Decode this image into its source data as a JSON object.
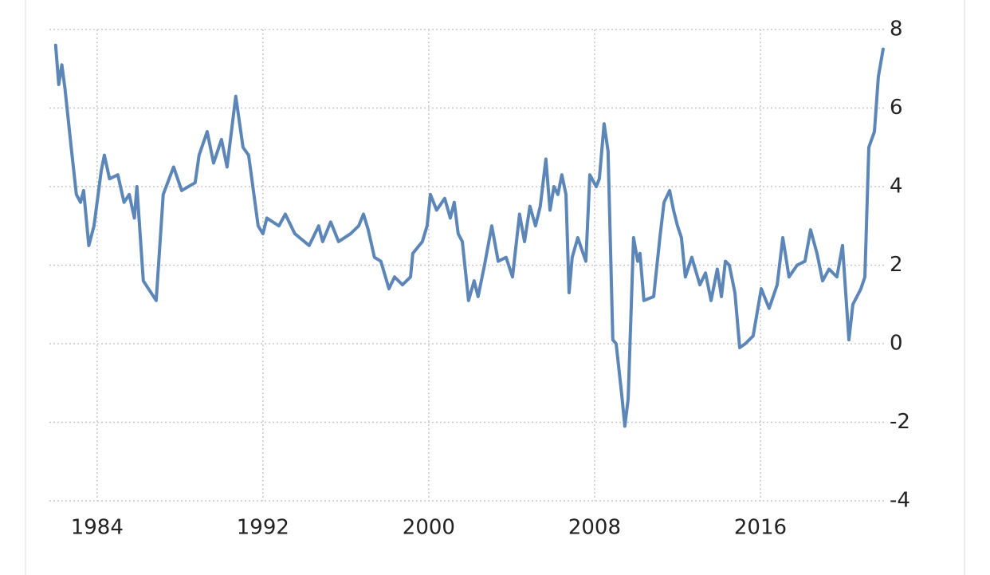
{
  "chart_data": {
    "type": "line",
    "color": "#5b86b7",
    "grid": true,
    "xlim": [
      1981.7,
      2022.0
    ],
    "xticks": [
      1984,
      1992,
      2000,
      2008,
      2016
    ],
    "ylim": [
      -4,
      8
    ],
    "yticks": [
      -4,
      -2,
      0,
      2,
      4,
      6,
      8
    ],
    "x": [
      1982.0,
      1982.15,
      1982.3,
      1982.45,
      1982.75,
      1983.0,
      1983.2,
      1983.35,
      1983.6,
      1983.85,
      1984.2,
      1984.35,
      1984.6,
      1985.0,
      1985.3,
      1985.55,
      1985.8,
      1985.92,
      1986.23,
      1986.85,
      1987.19,
      1987.69,
      1988.08,
      1988.73,
      1988.92,
      1989.31,
      1989.62,
      1990.0,
      1990.27,
      1990.69,
      1991.04,
      1991.31,
      1991.77,
      1992.0,
      1992.19,
      1992.77,
      1993.08,
      1993.54,
      1994.23,
      1994.69,
      1994.88,
      1995.27,
      1995.65,
      1996.23,
      1996.62,
      1996.85,
      1997.08,
      1997.38,
      1997.69,
      1998.08,
      1998.35,
      1998.73,
      1999.12,
      1999.23,
      1999.69,
      1999.92,
      2000.08,
      2000.38,
      2000.77,
      2001.04,
      2001.23,
      2001.42,
      2001.62,
      2001.92,
      2002.19,
      2002.38,
      2002.69,
      2003.04,
      2003.35,
      2003.73,
      2004.04,
      2004.38,
      2004.62,
      2004.88,
      2005.15,
      2005.38,
      2005.65,
      2005.85,
      2006.04,
      2006.23,
      2006.42,
      2006.62,
      2006.77,
      2006.92,
      2007.19,
      2007.38,
      2007.58,
      2007.77,
      2008.08,
      2008.23,
      2008.46,
      2008.65,
      2008.88,
      2009.04,
      2009.31,
      2009.46,
      2009.62,
      2009.88,
      2010.08,
      2010.19,
      2010.38,
      2010.85,
      2011.15,
      2011.35,
      2011.62,
      2011.81,
      2012.0,
      2012.19,
      2012.38,
      2012.69,
      2013.08,
      2013.35,
      2013.62,
      2013.92,
      2014.12,
      2014.31,
      2014.5,
      2014.77,
      2015.0,
      2015.27,
      2015.65,
      2016.04,
      2016.42,
      2016.81,
      2017.08,
      2017.38,
      2017.77,
      2018.15,
      2018.42,
      2018.73,
      2019.0,
      2019.31,
      2019.69,
      2019.96,
      2020.27,
      2020.46,
      2020.85,
      2021.04,
      2021.23,
      2021.5,
      2021.69,
      2021.92
    ],
    "values": [
      7.6,
      6.6,
      7.1,
      6.5,
      5.0,
      3.8,
      3.6,
      3.9,
      2.5,
      3.0,
      4.4,
      4.8,
      4.2,
      4.3,
      3.6,
      3.8,
      3.2,
      4.0,
      1.6,
      1.1,
      3.8,
      4.5,
      3.9,
      4.1,
      4.8,
      5.4,
      4.6,
      5.2,
      4.5,
      6.3,
      5.0,
      4.8,
      3.0,
      2.8,
      3.2,
      3.0,
      3.3,
      2.8,
      2.5,
      3.0,
      2.6,
      3.1,
      2.6,
      2.8,
      3.0,
      3.3,
      2.9,
      2.2,
      2.1,
      1.4,
      1.7,
      1.5,
      1.7,
      2.3,
      2.6,
      3.0,
      3.8,
      3.4,
      3.7,
      3.2,
      3.6,
      2.8,
      2.6,
      1.1,
      1.6,
      1.2,
      2.0,
      3.0,
      2.1,
      2.2,
      1.7,
      3.3,
      2.6,
      3.5,
      3.0,
      3.5,
      4.7,
      3.4,
      4.0,
      3.8,
      4.3,
      3.8,
      1.3,
      2.2,
      2.7,
      2.4,
      2.1,
      4.3,
      4.0,
      4.2,
      5.6,
      4.9,
      0.1,
      0.0,
      -1.3,
      -2.1,
      -1.4,
      2.7,
      2.1,
      2.3,
      1.1,
      1.2,
      2.7,
      3.6,
      3.9,
      3.4,
      3.0,
      2.7,
      1.7,
      2.2,
      1.5,
      1.8,
      1.1,
      1.9,
      1.2,
      2.1,
      2.0,
      1.3,
      -0.1,
      0.0,
      0.2,
      1.4,
      0.9,
      1.5,
      2.7,
      1.7,
      2.0,
      2.1,
      2.9,
      2.3,
      1.6,
      1.9,
      1.7,
      2.5,
      0.1,
      1.0,
      1.4,
      1.7,
      5.0,
      5.4,
      6.8,
      7.5
    ]
  }
}
